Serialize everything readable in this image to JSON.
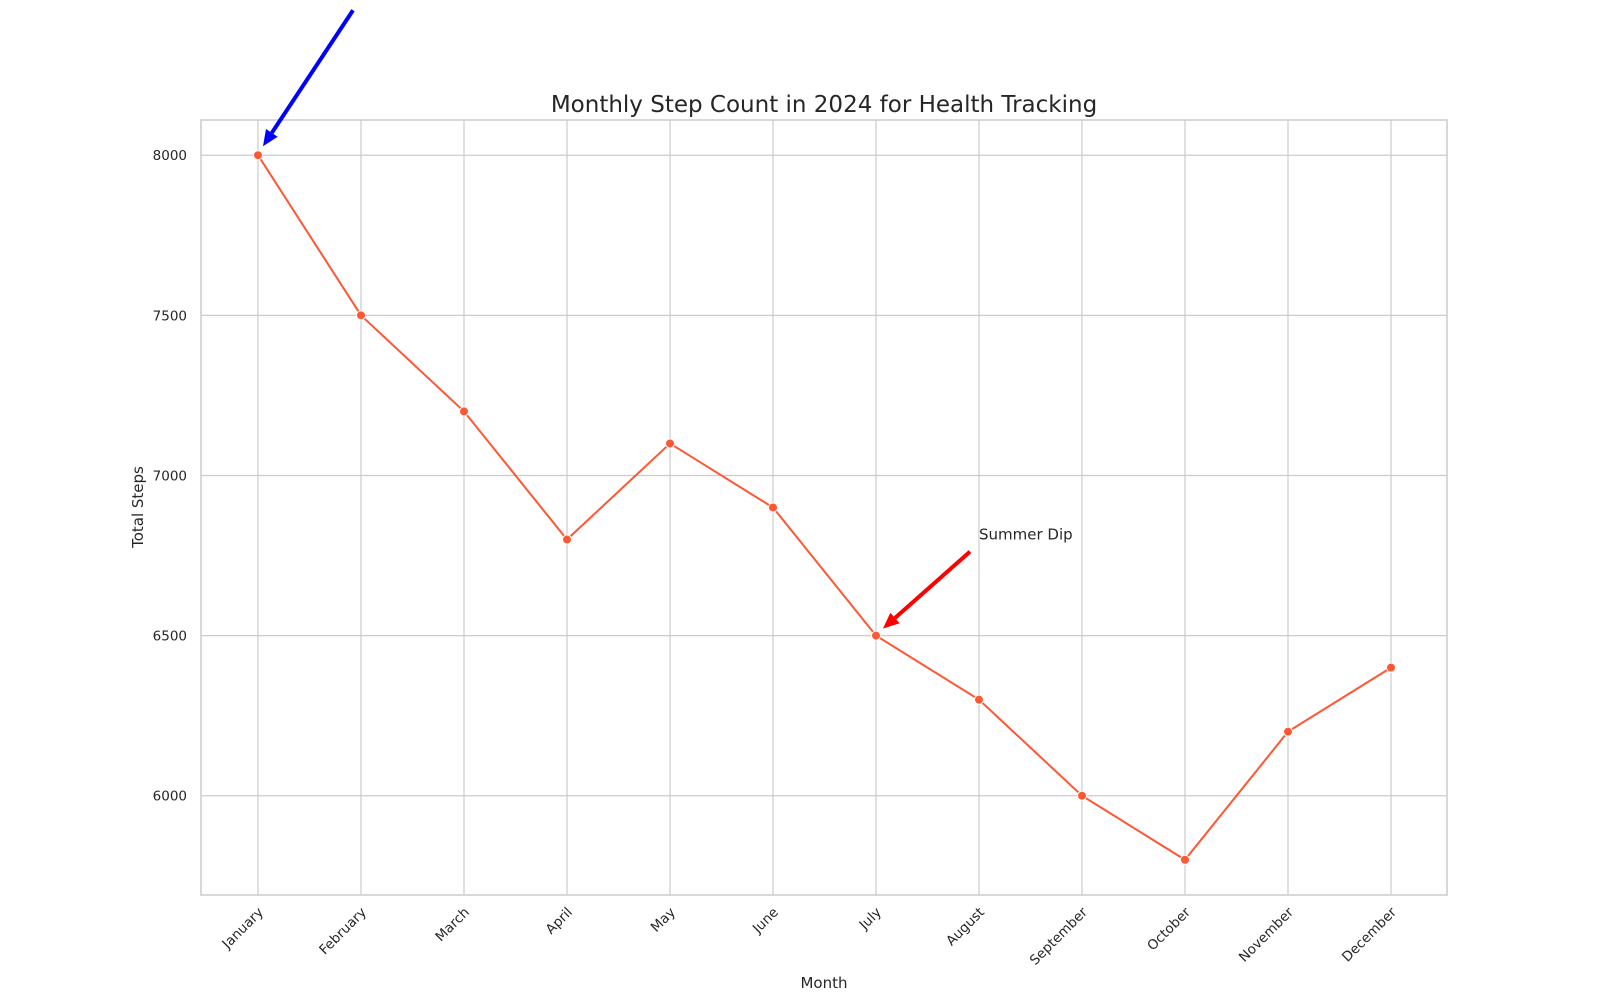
{
  "chart_data": {
    "type": "line",
    "title": "Monthly Step Count in 2024 for Health Tracking",
    "xlabel": "Month",
    "ylabel": "Total Steps",
    "categories": [
      "January",
      "February",
      "March",
      "April",
      "May",
      "June",
      "July",
      "August",
      "September",
      "October",
      "November",
      "December"
    ],
    "series": [
      {
        "values": [
          8000,
          7500,
          7200,
          6800,
          7100,
          6900,
          6500,
          6300,
          6000,
          5800,
          6200,
          6400
        ]
      }
    ],
    "yticks": [
      6000,
      6500,
      7000,
      7500,
      8000
    ],
    "ylim": [
      5690,
      8110
    ],
    "grid": true,
    "line_color": "#ff5733",
    "annotations": [
      {
        "text": "Summer Dip",
        "x": "July",
        "y": 6500,
        "arrow_color": "#ff0000"
      },
      {
        "text": "",
        "x": "January",
        "y": 8000,
        "arrow_color": "#0000ff"
      }
    ]
  }
}
